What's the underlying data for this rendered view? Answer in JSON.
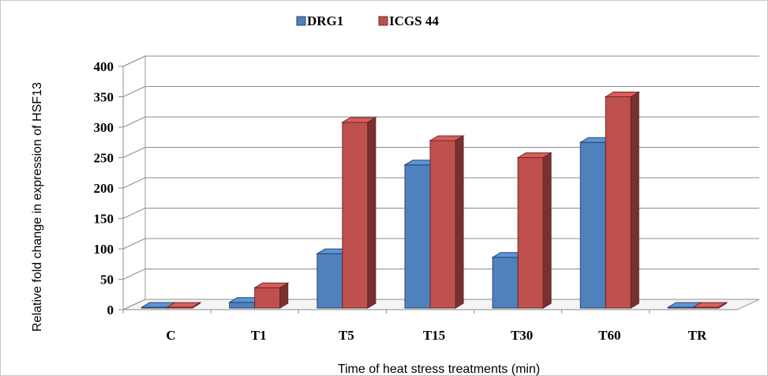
{
  "chart_data": {
    "type": "bar",
    "categories": [
      "C",
      "T1",
      "T5",
      "T15",
      "T30",
      "T60",
      "TR"
    ],
    "series": [
      {
        "name": "DRG1",
        "values": [
          0,
          12,
          92,
          238,
          86,
          275,
          0
        ],
        "color": "#4f81bd"
      },
      {
        "name": "ICGS 44",
        "values": [
          0,
          36,
          308,
          278,
          250,
          350,
          0
        ],
        "color": "#c0504d"
      }
    ],
    "title": "",
    "xlabel": "Time of heat stress treatments (min)",
    "ylabel": "Relative fold change in expression of HSF13",
    "ylim": [
      0,
      400
    ],
    "yticks": [
      0,
      50,
      100,
      150,
      200,
      250,
      300,
      350,
      400
    ],
    "grid": true,
    "legend_position": "top"
  }
}
